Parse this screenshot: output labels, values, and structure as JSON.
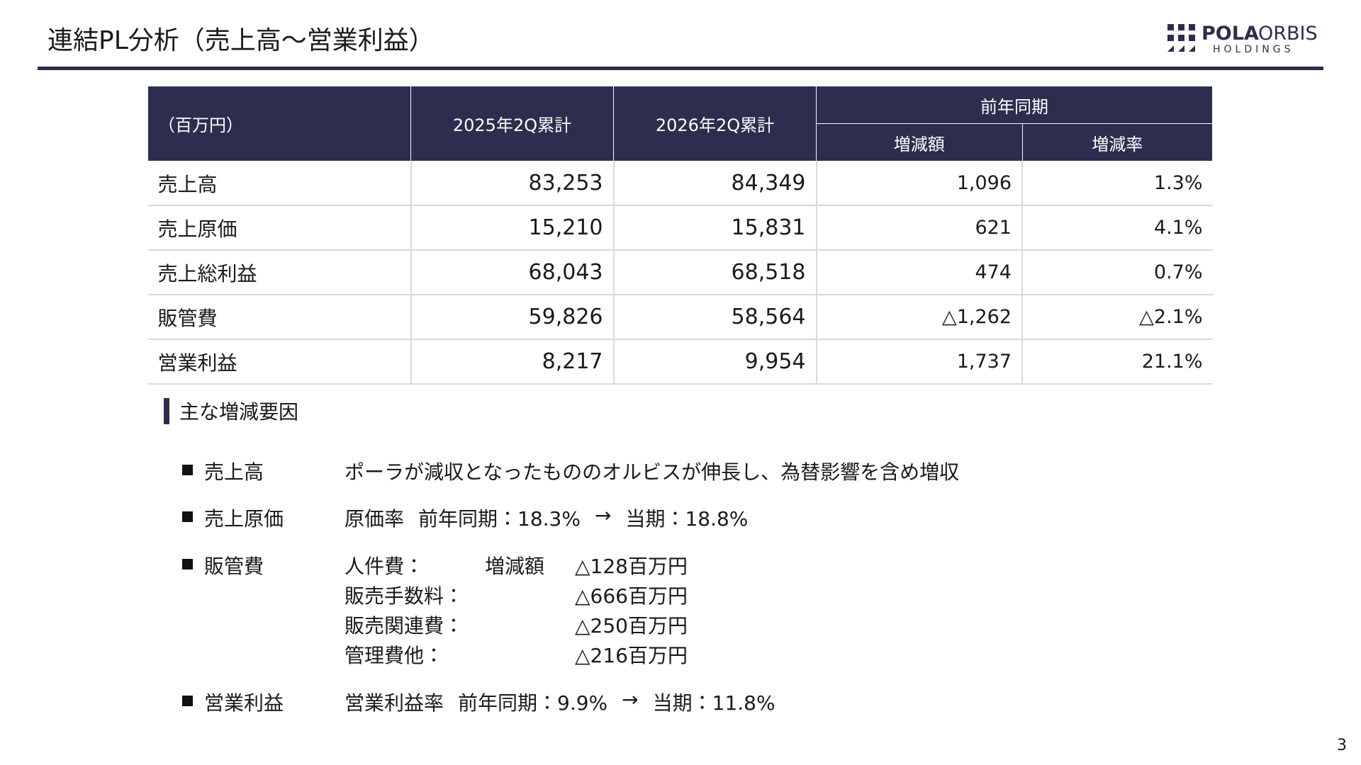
{
  "header": {
    "title": "連結PL分析（売上高～営業利益）",
    "logo": {
      "brand1": "POLA",
      "brand2": "ORBIS",
      "sub": "HOLDINGS"
    }
  },
  "table": {
    "unit_label": "（百万円）",
    "columns": [
      "2025年2Q累計",
      "2026年2Q累計"
    ],
    "group": "前年同期",
    "subcolumns": [
      "増減額",
      "増減率"
    ],
    "rows": [
      [
        "売上高",
        "83,253",
        "84,349",
        "1,096",
        "1.3%"
      ],
      [
        "売上原価",
        "15,210",
        "15,831",
        "621",
        "4.1%"
      ],
      [
        "売上総利益",
        "68,043",
        "68,518",
        "474",
        "0.7%"
      ],
      [
        "販管費",
        "59,826",
        "58,564",
        "△1,262",
        "△2.1%"
      ],
      [
        "営業利益",
        "8,217",
        "9,954",
        "1,737",
        "21.1%"
      ]
    ]
  },
  "factors": {
    "heading": "主な増減要因",
    "items": [
      {
        "label": "売上高",
        "parts": [
          "ポーラが減収となったもののオルビスが伸長し、為替影響を含め増収"
        ]
      },
      {
        "label": "売上原価",
        "parts": [
          "原価率",
          "前年同期：18.3%",
          "→",
          "当期：18.8%"
        ]
      },
      {
        "label": "販管費",
        "details": [
          {
            "name": "人件費：",
            "label": "増減額",
            "amount": "△128百万円"
          },
          {
            "name": "販売手数料：",
            "amount": "△666百万円"
          },
          {
            "name": "販売関連費：",
            "amount": "△250百万円"
          },
          {
            "name": "管理費他：",
            "amount": "△216百万円"
          }
        ]
      },
      {
        "label": "営業利益",
        "parts": [
          "営業利益率",
          "前年同期：9.9%",
          "→",
          "当期：11.8%"
        ]
      }
    ]
  },
  "page_number": "3"
}
